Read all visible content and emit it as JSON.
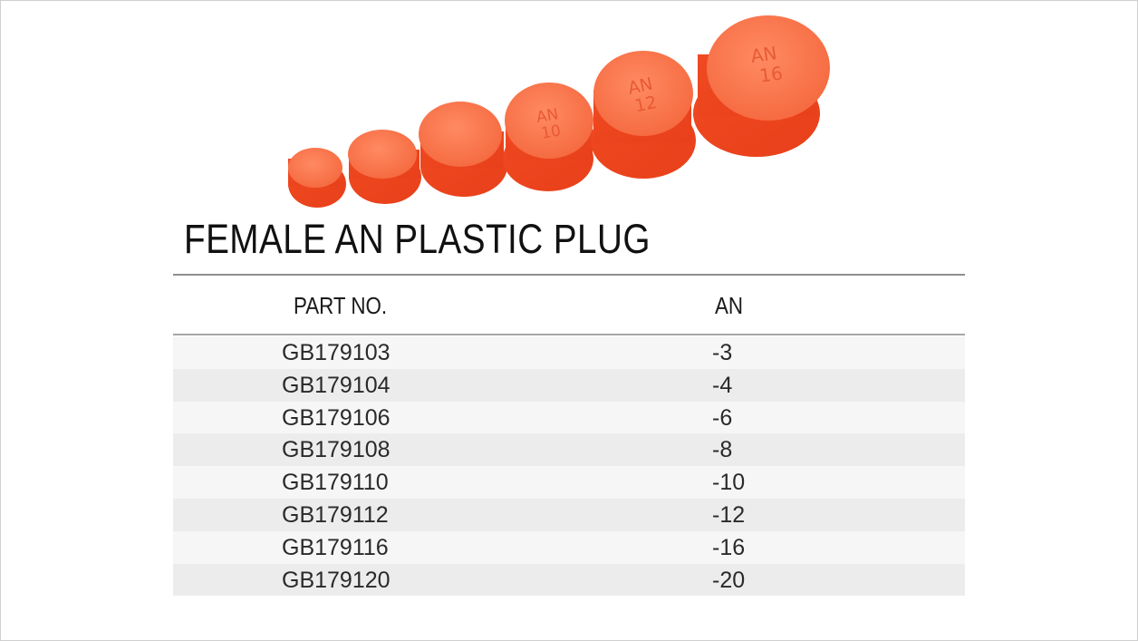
{
  "title": "FEMALE AN PLASTIC PLUG",
  "table": {
    "headers": [
      "PART NO.",
      "AN"
    ],
    "rows": [
      {
        "part": "GB179103",
        "an": "-3"
      },
      {
        "part": "GB179104",
        "an": "-4"
      },
      {
        "part": "GB179106",
        "an": "-6"
      },
      {
        "part": "GB179108",
        "an": "-8"
      },
      {
        "part": "GB179110",
        "an": "-10"
      },
      {
        "part": "GB179112",
        "an": "-12"
      },
      {
        "part": "GB179116",
        "an": "-16"
      },
      {
        "part": "GB179120",
        "an": "-20"
      }
    ]
  },
  "image": {
    "plug_markings": [
      {
        "line1": "",
        "line2": ""
      },
      {
        "line1": "",
        "line2": ""
      },
      {
        "line1": "",
        "line2": ""
      },
      {
        "line1": "AN",
        "line2": "10"
      },
      {
        "line1": "AN",
        "line2": "12"
      },
      {
        "line1": "AN",
        "line2": "16"
      }
    ],
    "plug_color": "#f2502a"
  }
}
